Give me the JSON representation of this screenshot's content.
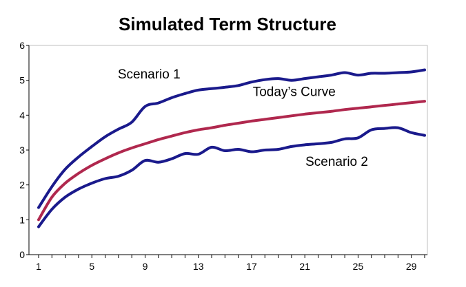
{
  "chart_data": {
    "type": "line",
    "title": "Simulated Term Structure",
    "xlabel": "",
    "ylabel": "",
    "xlim": [
      1,
      30
    ],
    "ylim": [
      0,
      6
    ],
    "x_ticks": [
      1,
      5,
      9,
      13,
      17,
      21,
      25,
      29
    ],
    "y_ticks": [
      0,
      1,
      2,
      3,
      4,
      5,
      6
    ],
    "grid": false,
    "legend": "none",
    "x": [
      1,
      2,
      3,
      4,
      5,
      6,
      7,
      8,
      9,
      10,
      11,
      12,
      13,
      14,
      15,
      16,
      17,
      18,
      19,
      20,
      21,
      22,
      23,
      24,
      25,
      26,
      27,
      28,
      29,
      30
    ],
    "series": [
      {
        "name": "Scenario 1",
        "color": "#1a1a8c",
        "label_x": 9.3,
        "label_y": 5.05,
        "values": [
          1.35,
          1.95,
          2.45,
          2.8,
          3.1,
          3.38,
          3.6,
          3.8,
          4.25,
          4.35,
          4.5,
          4.62,
          4.72,
          4.76,
          4.8,
          4.85,
          4.95,
          5.02,
          5.05,
          5.0,
          5.05,
          5.1,
          5.15,
          5.22,
          5.15,
          5.2,
          5.2,
          5.22,
          5.24,
          5.3
        ]
      },
      {
        "name": "Today’s Curve",
        "color": "#b0284e",
        "label_x": 20.2,
        "label_y": 4.55,
        "values": [
          1.0,
          1.65,
          2.05,
          2.33,
          2.56,
          2.75,
          2.92,
          3.06,
          3.18,
          3.3,
          3.4,
          3.5,
          3.58,
          3.64,
          3.71,
          3.77,
          3.83,
          3.88,
          3.93,
          3.98,
          4.03,
          4.07,
          4.11,
          4.16,
          4.2,
          4.24,
          4.28,
          4.32,
          4.36,
          4.4
        ]
      },
      {
        "name": "Scenario 2",
        "color": "#1a1a8c",
        "label_x": 23.4,
        "label_y": 2.55,
        "values": [
          0.8,
          1.3,
          1.65,
          1.88,
          2.05,
          2.18,
          2.25,
          2.42,
          2.7,
          2.65,
          2.75,
          2.9,
          2.88,
          3.08,
          2.98,
          3.02,
          2.95,
          3.0,
          3.02,
          3.1,
          3.15,
          3.18,
          3.22,
          3.32,
          3.35,
          3.58,
          3.62,
          3.64,
          3.5,
          3.42
        ]
      }
    ]
  }
}
